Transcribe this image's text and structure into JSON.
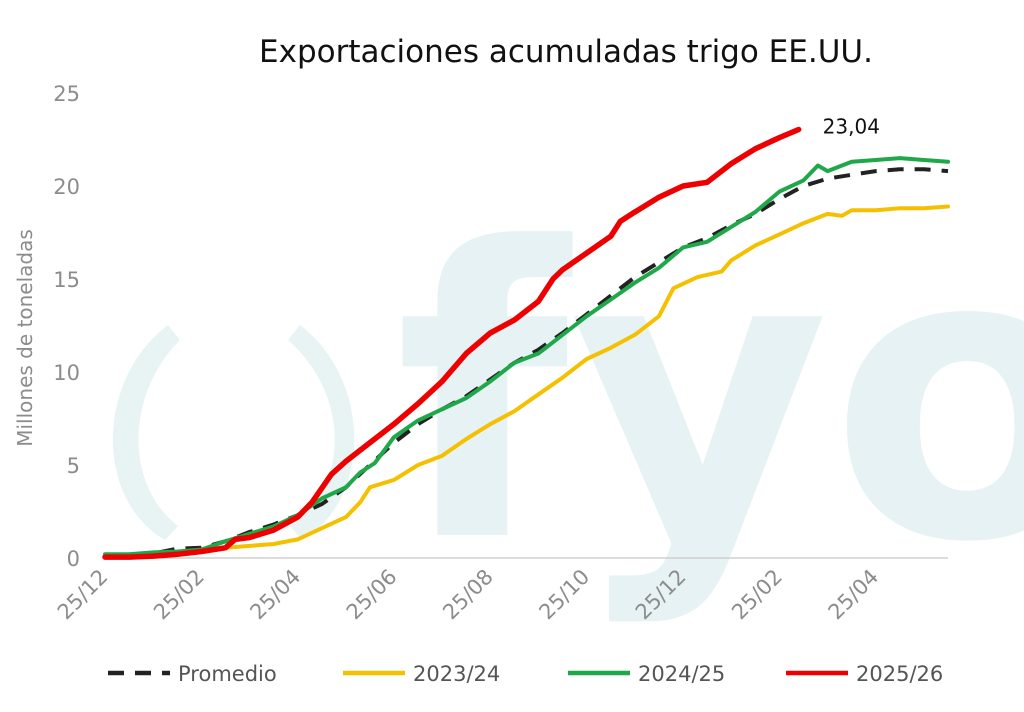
{
  "chart_data": {
    "type": "line",
    "title": "Exportaciones acumuladas trigo EE.UU.",
    "xlabel": "",
    "ylabel": "Millones de toneladas",
    "ylim": [
      0,
      25
    ],
    "yticks": [
      "0",
      "5",
      "10",
      "15",
      "20",
      "25"
    ],
    "x_start_month_index": 0,
    "x_end_month_index": 17.5,
    "xticks": [
      {
        "m": 0,
        "label": "25/12"
      },
      {
        "m": 2,
        "label": "25/02"
      },
      {
        "m": 4,
        "label": "25/04"
      },
      {
        "m": 6,
        "label": "25/06"
      },
      {
        "m": 8,
        "label": "25/08"
      },
      {
        "m": 10,
        "label": "25/10"
      },
      {
        "m": 12,
        "label": "25/12"
      },
      {
        "m": 14,
        "label": "25/02"
      },
      {
        "m": 16,
        "label": "25/04"
      }
    ],
    "watermark": "fyo",
    "annotation": {
      "text": "23,04",
      "series": "2025/26"
    },
    "legend_position": "bottom",
    "series": [
      {
        "name": "Promedio",
        "color": "#222222",
        "style": "dashed",
        "points": [
          [
            0,
            0.1
          ],
          [
            0.5,
            0.15
          ],
          [
            1,
            0.25
          ],
          [
            1.5,
            0.5
          ],
          [
            2,
            0.55
          ],
          [
            2.5,
            0.9
          ],
          [
            3,
            1.4
          ],
          [
            3.5,
            1.8
          ],
          [
            4,
            2.3
          ],
          [
            4.5,
            2.9
          ],
          [
            5,
            3.8
          ],
          [
            5.5,
            5.0
          ],
          [
            6,
            6.2
          ],
          [
            6.5,
            7.2
          ],
          [
            7,
            8.0
          ],
          [
            7.5,
            8.7
          ],
          [
            8,
            9.6
          ],
          [
            8.5,
            10.5
          ],
          [
            9,
            11.2
          ],
          [
            9.5,
            12.1
          ],
          [
            10,
            13.1
          ],
          [
            10.5,
            14.1
          ],
          [
            11,
            15.1
          ],
          [
            11.5,
            15.9
          ],
          [
            12,
            16.7
          ],
          [
            12.5,
            17.2
          ],
          [
            13,
            17.9
          ],
          [
            13.5,
            18.5
          ],
          [
            14,
            19.3
          ],
          [
            14.5,
            20.0
          ],
          [
            15,
            20.4
          ],
          [
            15.5,
            20.6
          ],
          [
            16,
            20.8
          ],
          [
            16.5,
            20.9
          ],
          [
            17,
            20.9
          ],
          [
            17.5,
            20.8
          ]
        ]
      },
      {
        "name": "2023/24",
        "color": "#f5c000",
        "style": "solid",
        "points": [
          [
            0,
            0.1
          ],
          [
            0.5,
            0.1
          ],
          [
            1,
            0.15
          ],
          [
            1.5,
            0.25
          ],
          [
            2,
            0.35
          ],
          [
            2.5,
            0.55
          ],
          [
            3,
            0.65
          ],
          [
            3.5,
            0.75
          ],
          [
            4,
            1.0
          ],
          [
            4.5,
            1.6
          ],
          [
            5,
            2.2
          ],
          [
            5.3,
            3.0
          ],
          [
            5.5,
            3.8
          ],
          [
            6,
            4.2
          ],
          [
            6.5,
            5.0
          ],
          [
            7,
            5.5
          ],
          [
            7.5,
            6.4
          ],
          [
            8,
            7.2
          ],
          [
            8.5,
            7.9
          ],
          [
            9,
            8.8
          ],
          [
            9.5,
            9.7
          ],
          [
            10,
            10.7
          ],
          [
            10.5,
            11.3
          ],
          [
            11,
            12.0
          ],
          [
            11.5,
            13.0
          ],
          [
            11.8,
            14.5
          ],
          [
            12.3,
            15.1
          ],
          [
            12.8,
            15.4
          ],
          [
            13,
            16.0
          ],
          [
            13.5,
            16.8
          ],
          [
            14,
            17.4
          ],
          [
            14.5,
            18.0
          ],
          [
            15,
            18.5
          ],
          [
            15.3,
            18.4
          ],
          [
            15.5,
            18.7
          ],
          [
            16,
            18.7
          ],
          [
            16.5,
            18.8
          ],
          [
            17,
            18.8
          ],
          [
            17.5,
            18.9
          ]
        ]
      },
      {
        "name": "2024/25",
        "color": "#1ea84a",
        "style": "solid",
        "points": [
          [
            0,
            0.2
          ],
          [
            0.5,
            0.2
          ],
          [
            1,
            0.3
          ],
          [
            1.5,
            0.35
          ],
          [
            2,
            0.45
          ],
          [
            2.5,
            0.9
          ],
          [
            3,
            1.3
          ],
          [
            3.5,
            1.7
          ],
          [
            4,
            2.3
          ],
          [
            4.5,
            3.2
          ],
          [
            5,
            3.8
          ],
          [
            5.3,
            4.6
          ],
          [
            5.6,
            5.1
          ],
          [
            6,
            6.5
          ],
          [
            6.5,
            7.4
          ],
          [
            7,
            8.0
          ],
          [
            7.5,
            8.6
          ],
          [
            8,
            9.5
          ],
          [
            8.5,
            10.5
          ],
          [
            9,
            11.0
          ],
          [
            9.5,
            12.0
          ],
          [
            10,
            13.0
          ],
          [
            10.5,
            13.9
          ],
          [
            11,
            14.8
          ],
          [
            11.5,
            15.6
          ],
          [
            12,
            16.7
          ],
          [
            12.5,
            17.0
          ],
          [
            13,
            17.8
          ],
          [
            13.5,
            18.6
          ],
          [
            14,
            19.7
          ],
          [
            14.5,
            20.3
          ],
          [
            14.8,
            21.1
          ],
          [
            15,
            20.8
          ],
          [
            15.5,
            21.3
          ],
          [
            16,
            21.4
          ],
          [
            16.5,
            21.5
          ],
          [
            17,
            21.4
          ],
          [
            17.5,
            21.3
          ]
        ]
      },
      {
        "name": "2025/26",
        "color": "#ee0000",
        "style": "solid",
        "points": [
          [
            0,
            0.05
          ],
          [
            0.5,
            0.05
          ],
          [
            1,
            0.1
          ],
          [
            1.5,
            0.2
          ],
          [
            2,
            0.35
          ],
          [
            2.5,
            0.55
          ],
          [
            2.7,
            1.0
          ],
          [
            3,
            1.1
          ],
          [
            3.5,
            1.5
          ],
          [
            4,
            2.2
          ],
          [
            4.3,
            3.0
          ],
          [
            4.7,
            4.5
          ],
          [
            5,
            5.2
          ],
          [
            5.5,
            6.2
          ],
          [
            6,
            7.2
          ],
          [
            6.5,
            8.3
          ],
          [
            7,
            9.5
          ],
          [
            7.5,
            11.0
          ],
          [
            8,
            12.1
          ],
          [
            8.5,
            12.8
          ],
          [
            9,
            13.8
          ],
          [
            9.3,
            15.0
          ],
          [
            9.5,
            15.5
          ],
          [
            10,
            16.4
          ],
          [
            10.5,
            17.3
          ],
          [
            10.7,
            18.1
          ],
          [
            11,
            18.6
          ],
          [
            11.5,
            19.4
          ],
          [
            12,
            20.0
          ],
          [
            12.5,
            20.2
          ],
          [
            13,
            21.2
          ],
          [
            13.5,
            22.0
          ],
          [
            14,
            22.6
          ],
          [
            14.4,
            23.04
          ]
        ]
      }
    ]
  }
}
